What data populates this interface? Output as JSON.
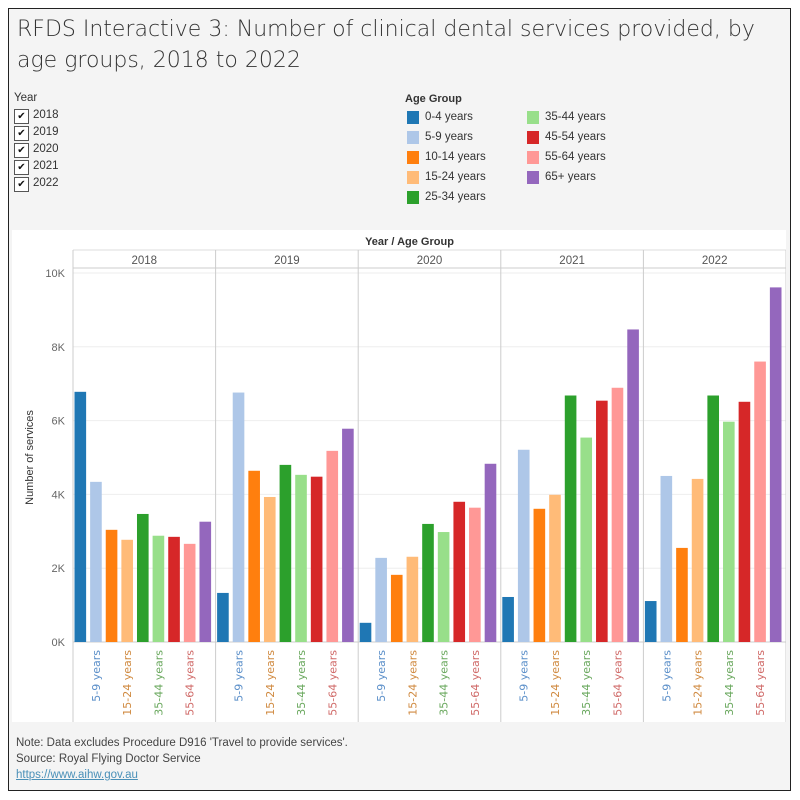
{
  "title": "RFDS Interactive 3: Number of clinical dental services provided, by age groups, 2018 to 2022",
  "year_filter": {
    "label": "Year",
    "items": [
      {
        "label": "2018",
        "checked": true
      },
      {
        "label": "2019",
        "checked": true
      },
      {
        "label": "2020",
        "checked": true
      },
      {
        "label": "2021",
        "checked": true
      },
      {
        "label": "2022",
        "checked": true
      }
    ]
  },
  "legend": {
    "title": "Age Group",
    "items": [
      {
        "label": "0-4 years",
        "color": "#1f77b4"
      },
      {
        "label": "5-9 years",
        "color": "#aec7e8"
      },
      {
        "label": "10-14 years",
        "color": "#ff7f0e"
      },
      {
        "label": "15-24 years",
        "color": "#ffbb78"
      },
      {
        "label": "25-34 years",
        "color": "#2ca02c"
      },
      {
        "label": "35-44 years",
        "color": "#98df8a"
      },
      {
        "label": "45-54 years",
        "color": "#d62728"
      },
      {
        "label": "55-64 years",
        "color": "#ff9896"
      },
      {
        "label": "65+ years",
        "color": "#9467bd"
      }
    ]
  },
  "chart_data": {
    "type": "bar",
    "header": "Year / Age Group",
    "ylabel": "Number of services",
    "ylim": [
      0,
      10000
    ],
    "yticks": [
      0,
      2000,
      4000,
      6000,
      8000,
      10000
    ],
    "ytick_labels": [
      "0K",
      "2K",
      "4K",
      "6K",
      "8K",
      "10K"
    ],
    "grid": true,
    "legend": "top-right",
    "panels": [
      "2018",
      "2019",
      "2020",
      "2021",
      "2022"
    ],
    "categories": [
      "0-4 years",
      "5-9 years",
      "10-14 years",
      "15-24 years",
      "25-34 years",
      "35-44 years",
      "45-54 years",
      "55-64 years",
      "65+ years"
    ],
    "shown_category_labels": [
      "5-9 years",
      "15-24 years",
      "35-44 years",
      "55-64 years"
    ],
    "series": [
      {
        "panel": "2018",
        "values": [
          6780,
          4340,
          3040,
          2770,
          3470,
          2880,
          2850,
          2660,
          3260
        ]
      },
      {
        "panel": "2019",
        "values": [
          1330,
          6760,
          4640,
          3930,
          4800,
          4530,
          4480,
          5180,
          5780
        ]
      },
      {
        "panel": "2020",
        "values": [
          520,
          2280,
          1820,
          2310,
          3200,
          2980,
          3800,
          3640,
          4830
        ]
      },
      {
        "panel": "2021",
        "values": [
          1220,
          5210,
          3610,
          3990,
          6680,
          5540,
          6540,
          6890,
          8470
        ]
      },
      {
        "panel": "2022",
        "values": [
          1110,
          4500,
          2550,
          4420,
          6680,
          5970,
          6510,
          7600,
          9610
        ]
      }
    ]
  },
  "footer": {
    "note": "Note: Data excludes Procedure D916 'Travel to provide services'.",
    "source": "Source: Royal Flying Doctor Service",
    "link": "https://www.aihw.gov.au"
  }
}
